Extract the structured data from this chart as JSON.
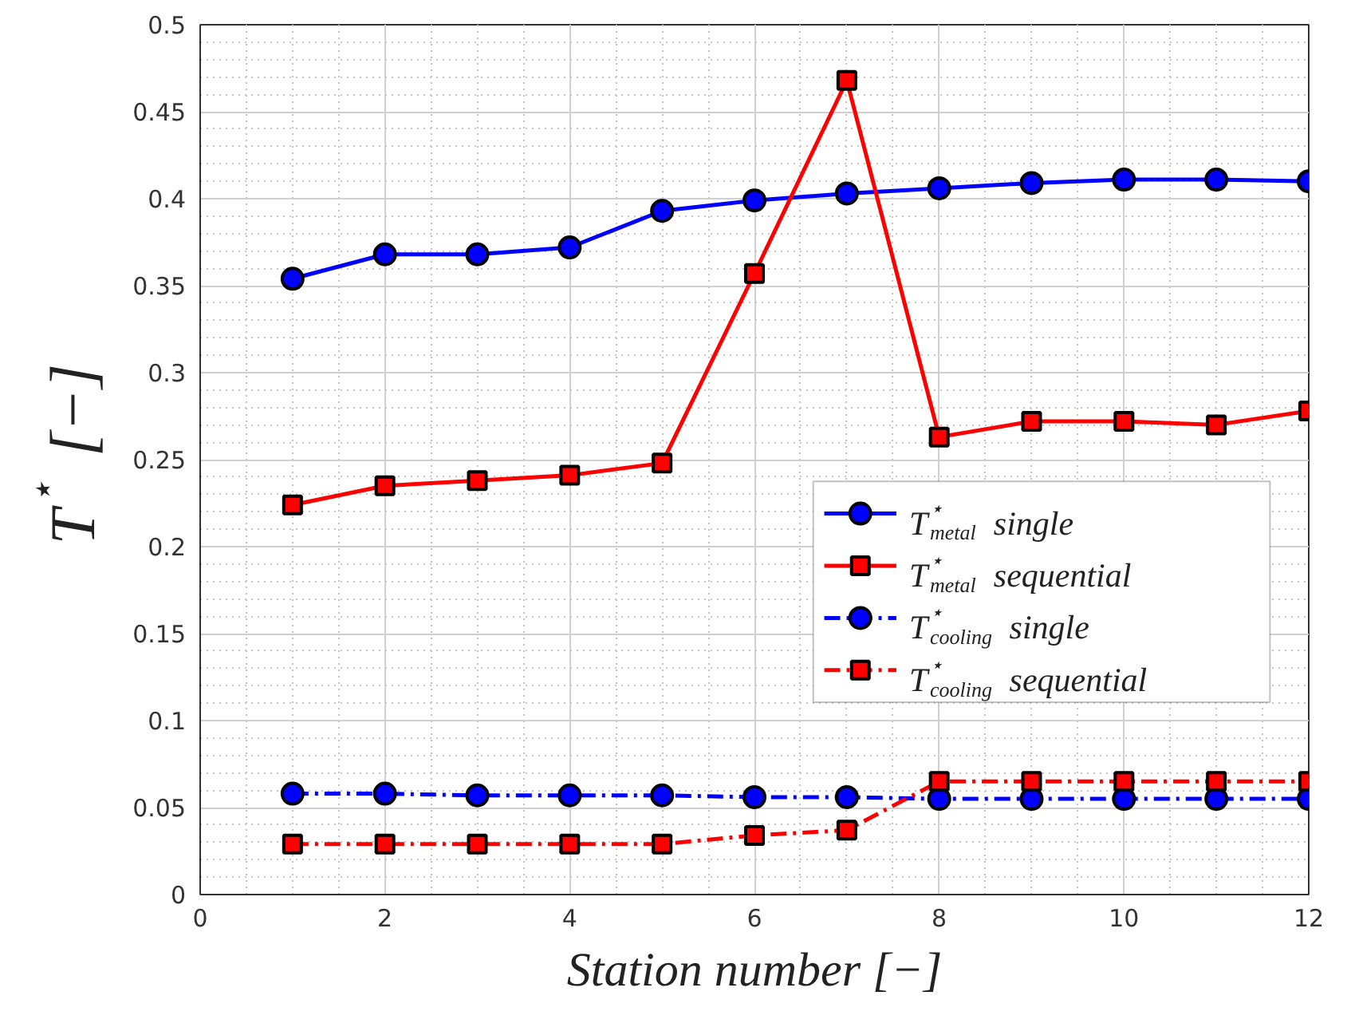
{
  "chart_data": {
    "type": "line",
    "xlabel": "Station number [−]",
    "ylabel": "T$^{⋆}$ [−]",
    "x": [
      1,
      2,
      3,
      4,
      5,
      6,
      7,
      8,
      9,
      10,
      11,
      12
    ],
    "xlim": [
      0,
      12
    ],
    "xticks": [
      0,
      2,
      4,
      6,
      8,
      10,
      12
    ],
    "ylim": [
      0,
      0.5
    ],
    "yticks": [
      0,
      0.05,
      0.1,
      0.15,
      0.2,
      0.25,
      0.3,
      0.35,
      0.4,
      0.45,
      0.5
    ],
    "grid": true,
    "legend": "right",
    "series": [
      {
        "name": "T$^{⋆}$$_{metal}$ single",
        "color": "#0000ff",
        "marker": "circle",
        "line_style": "solid",
        "values": [
          0.354,
          0.368,
          0.368,
          0.372,
          0.393,
          0.399,
          0.403,
          0.406,
          0.409,
          0.411,
          0.411,
          0.41
        ]
      },
      {
        "name": "T$^{⋆}$$_{metal}$ sequential",
        "color": "#ff0000",
        "marker": "square",
        "line_style": "solid",
        "values": [
          0.224,
          0.235,
          0.238,
          0.241,
          0.248,
          0.357,
          0.468,
          0.263,
          0.272,
          0.272,
          0.27,
          0.278
        ]
      },
      {
        "name": "T$^{⋆}$$_{cooling}$ single",
        "color": "#0000ff",
        "marker": "circle",
        "line_style": "dashdot",
        "values": [
          0.058,
          0.058,
          0.057,
          0.057,
          0.057,
          0.056,
          0.056,
          0.055,
          0.055,
          0.055,
          0.055,
          0.055
        ]
      },
      {
        "name": "T$^{⋆}$$_{cooling}$ sequential",
        "color": "#ff0000",
        "marker": "square",
        "line_style": "dashdot",
        "values": [
          0.029,
          0.029,
          0.029,
          0.029,
          0.029,
          0.034,
          0.037,
          0.065,
          0.065,
          0.065,
          0.065,
          0.065
        ]
      }
    ]
  }
}
